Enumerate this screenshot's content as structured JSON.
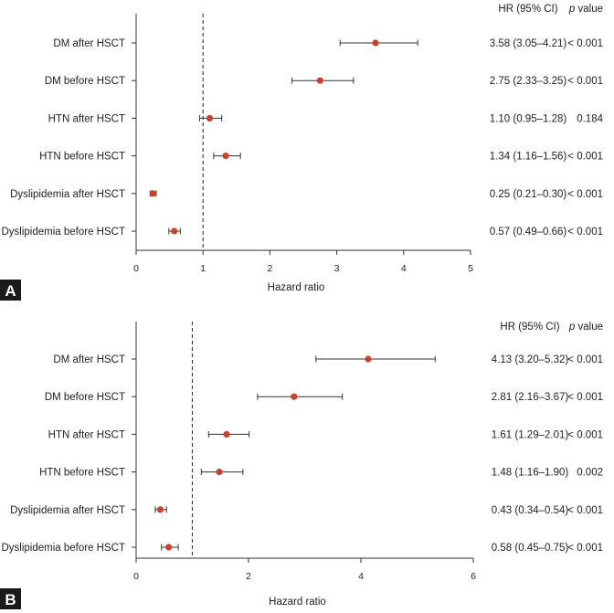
{
  "chart_data": [
    {
      "type": "forest",
      "panel": "A",
      "xlabel": "Hazard ratio",
      "xlim": [
        0,
        5
      ],
      "xticks": [
        0,
        1,
        2,
        3,
        4,
        5
      ],
      "reference_line": 1,
      "header_hr": "HR (95% CI)",
      "header_p_italic": "p",
      "header_p_rest": " value",
      "rows": [
        {
          "label": "DM after HSCT",
          "hr": 3.58,
          "lo": 3.05,
          "hi": 4.21,
          "hr_text": "3.58 (3.05–4.21)",
          "p": "< 0.001"
        },
        {
          "label": "DM before HSCT",
          "hr": 2.75,
          "lo": 2.33,
          "hi": 3.25,
          "hr_text": "2.75 (2.33–3.25)",
          "p": "< 0.001"
        },
        {
          "label": "HTN after HSCT",
          "hr": 1.1,
          "lo": 0.95,
          "hi": 1.28,
          "hr_text": "1.10 (0.95–1.28)",
          "p": "0.184"
        },
        {
          "label": "HTN before HSCT",
          "hr": 1.34,
          "lo": 1.16,
          "hi": 1.56,
          "hr_text": "1.34 (1.16–1.56)",
          "p": "< 0.001"
        },
        {
          "label": "Dyslipidemia after HSCT",
          "hr": 0.25,
          "lo": 0.21,
          "hi": 0.3,
          "hr_text": "0.25 (0.21–0.30)",
          "p": "< 0.001"
        },
        {
          "label": "Dyslipidemia before HSCT",
          "hr": 0.57,
          "lo": 0.49,
          "hi": 0.66,
          "hr_text": "0.57 (0.49–0.66)",
          "p": "< 0.001"
        }
      ]
    },
    {
      "type": "forest",
      "panel": "B",
      "xlabel": "Hazard ratio",
      "xlim": [
        0,
        6
      ],
      "xticks": [
        0,
        2,
        4,
        6
      ],
      "reference_line": 1,
      "header_hr": "HR (95% CI)",
      "header_p_italic": "p",
      "header_p_rest": " value",
      "rows": [
        {
          "label": "DM after HSCT",
          "hr": 4.13,
          "lo": 3.2,
          "hi": 5.32,
          "hr_text": "4.13 (3.20–5.32)",
          "p": "< 0.001"
        },
        {
          "label": "DM before HSCT",
          "hr": 2.81,
          "lo": 2.16,
          "hi": 3.67,
          "hr_text": "2.81 (2.16–3.67)",
          "p": "< 0.001"
        },
        {
          "label": "HTN after HSCT",
          "hr": 1.61,
          "lo": 1.29,
          "hi": 2.01,
          "hr_text": "1.61 (1.29–2.01)",
          "p": "< 0.001"
        },
        {
          "label": "HTN before HSCT",
          "hr": 1.48,
          "lo": 1.16,
          "hi": 1.9,
          "hr_text": "1.48 (1.16–1.90)",
          "p": "0.002"
        },
        {
          "label": "Dyslipidemia after HSCT",
          "hr": 0.43,
          "lo": 0.34,
          "hi": 0.54,
          "hr_text": "0.43 (0.34–0.54)",
          "p": "< 0.001"
        },
        {
          "label": "Dyslipidemia before HSCT",
          "hr": 0.58,
          "lo": 0.45,
          "hi": 0.75,
          "hr_text": "0.58 (0.45–0.75)",
          "p": "< 0.001"
        }
      ]
    }
  ],
  "colors": {
    "point": "#c8412c",
    "line": "#333333",
    "panel_letter_bg": "#1a1a1a"
  }
}
